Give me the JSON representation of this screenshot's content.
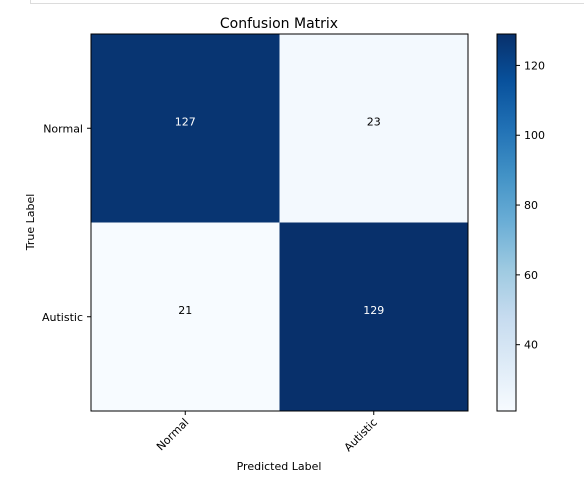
{
  "chart_data": {
    "type": "heatmap",
    "title": "Confusion Matrix",
    "xlabel": "Predicted Label",
    "ylabel": "True Label",
    "x_categories": [
      "Normal",
      "Autistic"
    ],
    "y_categories": [
      "Normal",
      "Autistic"
    ],
    "values": [
      [
        127,
        23
      ],
      [
        21,
        129
      ]
    ],
    "colormap": "Blues",
    "colorbar": {
      "min": 21,
      "max": 129,
      "ticks": [
        40,
        60,
        80,
        100,
        120
      ]
    },
    "grid": false
  }
}
